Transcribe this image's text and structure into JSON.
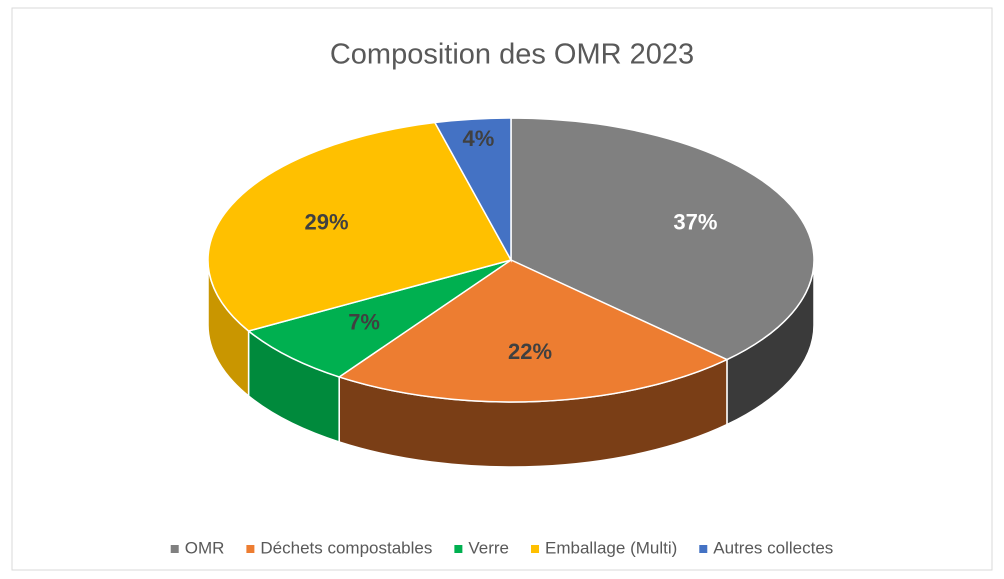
{
  "chart_data": {
    "type": "pie",
    "title": "Composition des OMR 2023",
    "categories": [
      "OMR",
      "Déchets compostables",
      "Verre",
      "Emballage (Multi)",
      "Autres collectes"
    ],
    "values": [
      37,
      22,
      7,
      29,
      4
    ],
    "value_labels": [
      "37%",
      "22%",
      "7%",
      "29%",
      "4%"
    ],
    "colors": [
      "#808080",
      "#ed7d31",
      "#00b050",
      "#ffc000",
      "#4472c4"
    ],
    "side_colors": [
      "#3a3a3a",
      "#7a3e16",
      "#008a3c",
      "#c99600",
      "#2f5597"
    ],
    "label_colors": [
      "#ffffff",
      "#404040",
      "#404040",
      "#404040",
      "#404040"
    ],
    "legend": "bottom"
  }
}
